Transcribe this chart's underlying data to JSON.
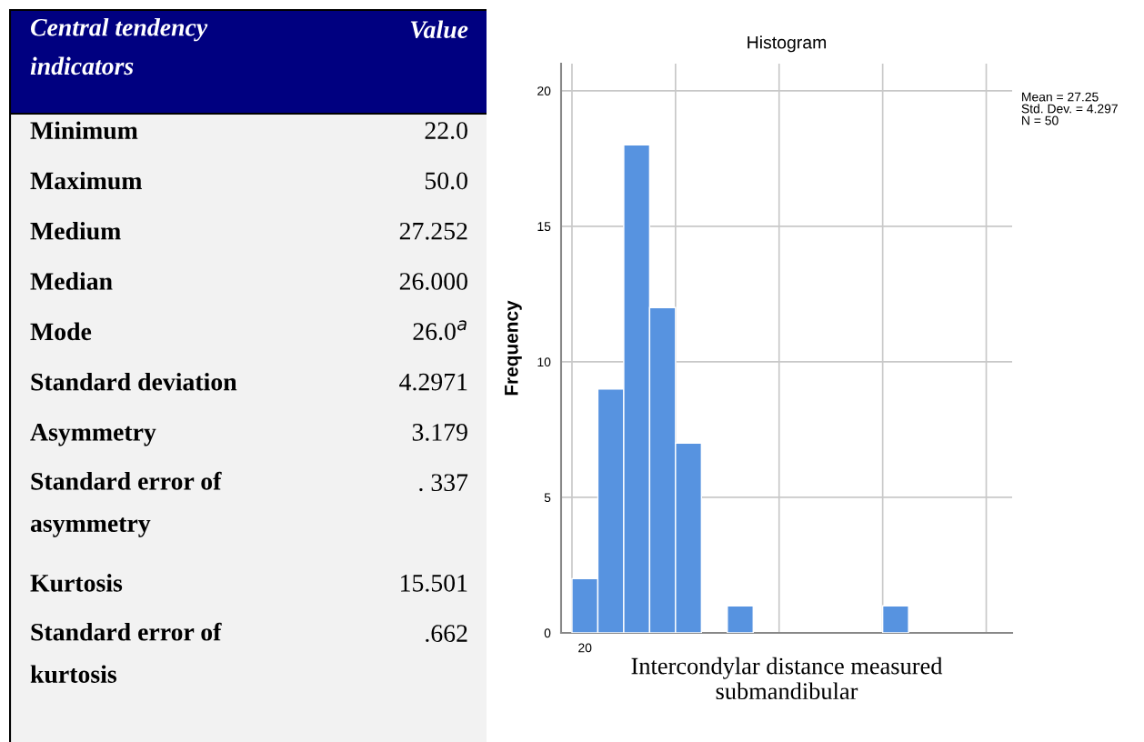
{
  "chart_data": [
    {
      "type": "other",
      "title": "Central tendency indicators",
      "annotations": [
        "Value"
      ],
      "categories": [
        "Minimum",
        "Maximum",
        "Medium",
        "Median",
        "Mode",
        "Standard deviation",
        "Asymmetry",
        "Standard error of asymmetry",
        "Kurtosis",
        "Standard error of kurtosis"
      ],
      "value_labels": [
        "22.0",
        "50.0",
        "27.252",
        "26.000",
        "26.0$^{a}$",
        "4.2971",
        "3.179",
        ". 337",
        "15.501",
        ".662"
      ]
    },
    {
      "type": "bar",
      "title": "Histogram",
      "xlabel": "Intercondylar distance measured submandibular",
      "ylabel": "Frequency",
      "categories": [
        "20",
        null,
        null,
        null,
        null,
        null,
        null,
        null,
        null,
        null,
        null,
        null,
        null,
        null,
        null,
        null,
        null
      ],
      "values": [
        2,
        9,
        18,
        12,
        7,
        0,
        1,
        0,
        0,
        0,
        0,
        0,
        1,
        0,
        0,
        0,
        0
      ],
      "color": "#5793e0",
      "ylim": [
        0,
        21
      ],
      "yticks": [
        0,
        5,
        10,
        15,
        20
      ],
      "grid": true,
      "annotations": [
        "Mean = 27.25",
        "Std. Dev. = 4.297",
        "N = 50"
      ]
    }
  ]
}
